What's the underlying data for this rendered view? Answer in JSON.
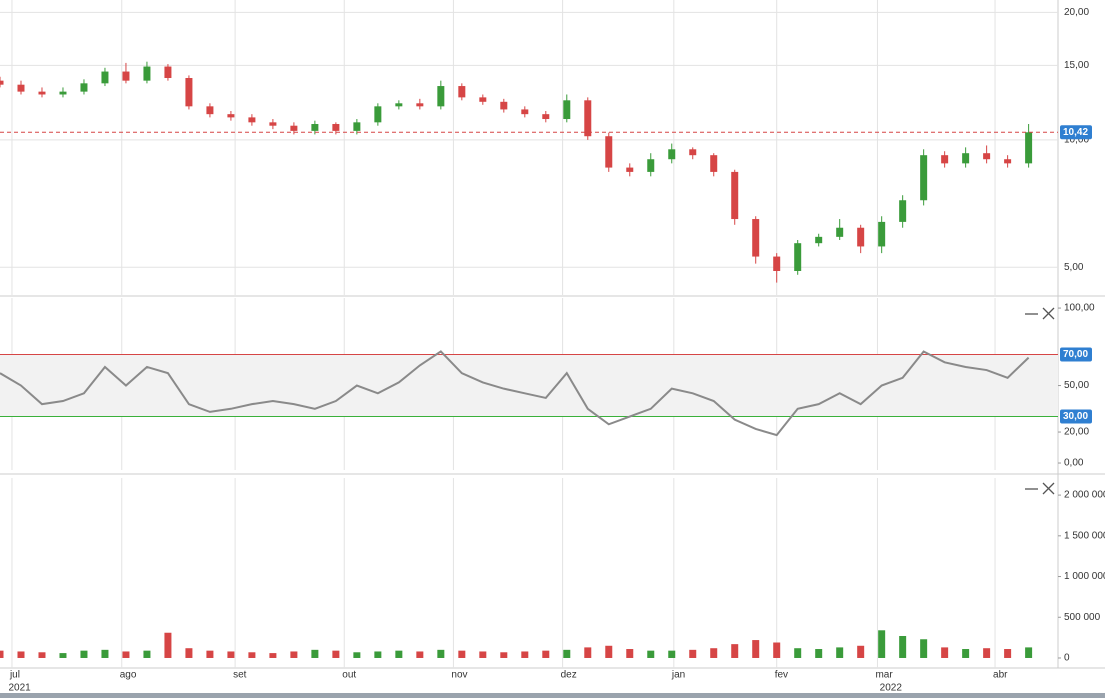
{
  "chart_data": [
    {
      "type": "candlestick",
      "log_scale": true,
      "grid": true,
      "up_color": "#3a9b3a",
      "down_color": "#d64545",
      "xlim": [
        0,
        50.4
      ],
      "xticks": [
        {
          "value": 0.57,
          "label": "jul"
        },
        {
          "value": 5.8,
          "label": "ago"
        },
        {
          "value": 11.2,
          "label": "set"
        },
        {
          "value": 16.4,
          "label": "out"
        },
        {
          "value": 21.6,
          "label": "nov"
        },
        {
          "value": 26.8,
          "label": "dez"
        },
        {
          "value": 32.1,
          "label": "jan"
        },
        {
          "value": 37,
          "label": "fev"
        },
        {
          "value": 41.8,
          "label": "mar"
        },
        {
          "value": 47.4,
          "label": "abr"
        }
      ],
      "year_ticks": [
        {
          "value": 0.5,
          "label": "2021"
        },
        {
          "value": 42,
          "label": "2022"
        }
      ],
      "ylim": [
        4.3,
        21.4
      ],
      "yticks": [
        {
          "value": 5,
          "label": "5,00"
        },
        {
          "value": 10,
          "label": "10,00"
        },
        {
          "value": 15,
          "label": "15,00"
        },
        {
          "value": 20,
          "label": "20,00"
        }
      ],
      "last_price": {
        "value": 10.42,
        "label": "10,42",
        "color": "#d64545"
      },
      "open": [
        13.8,
        13.5,
        13.0,
        12.8,
        13.0,
        13.6,
        14.5,
        13.8,
        14.9,
        14.0,
        12.0,
        11.5,
        11.3,
        11.0,
        10.8,
        10.5,
        10.9,
        10.5,
        11.0,
        12.0,
        12.2,
        12.0,
        13.4,
        12.6,
        12.3,
        11.8,
        11.5,
        11.2,
        12.4,
        10.2,
        8.6,
        8.4,
        9.0,
        9.5,
        9.2,
        8.4,
        6.5,
        5.3,
        4.9,
        5.7,
        5.9,
        6.2,
        5.6,
        6.4,
        7.2,
        9.2,
        8.8,
        9.3,
        9.0,
        8.8
      ],
      "high": [
        14.1,
        13.8,
        13.3,
        13.3,
        13.9,
        14.8,
        15.2,
        15.3,
        15.1,
        14.2,
        12.2,
        11.7,
        11.5,
        11.2,
        11.0,
        11.1,
        11.0,
        11.2,
        12.2,
        12.4,
        12.5,
        13.8,
        13.6,
        12.8,
        12.5,
        12.0,
        11.7,
        12.8,
        12.6,
        10.4,
        8.8,
        9.3,
        9.8,
        9.6,
        9.3,
        8.5,
        6.6,
        5.4,
        5.8,
        6.0,
        6.5,
        6.3,
        6.6,
        7.4,
        9.5,
        9.4,
        9.6,
        9.7,
        9.2,
        10.9
      ],
      "low": [
        13.3,
        12.8,
        12.6,
        12.6,
        12.8,
        13.4,
        13.6,
        13.6,
        13.8,
        11.8,
        11.3,
        11.1,
        10.8,
        10.6,
        10.3,
        10.3,
        10.3,
        10.3,
        10.8,
        11.8,
        11.8,
        11.8,
        12.4,
        12.1,
        11.6,
        11.3,
        11.0,
        11.0,
        10.0,
        8.4,
        8.2,
        8.2,
        8.8,
        9.0,
        8.2,
        6.3,
        5.1,
        4.6,
        4.8,
        5.6,
        5.8,
        5.4,
        5.4,
        6.2,
        7.0,
        8.6,
        8.6,
        8.8,
        8.6,
        8.6
      ],
      "close": [
        13.5,
        13.0,
        12.8,
        13.0,
        13.6,
        14.5,
        13.8,
        14.9,
        14.0,
        12.0,
        11.5,
        11.3,
        11.0,
        10.8,
        10.5,
        10.9,
        10.5,
        11.0,
        12.0,
        12.2,
        12.0,
        13.4,
        12.6,
        12.3,
        11.8,
        11.5,
        11.2,
        12.4,
        10.2,
        8.6,
        8.4,
        9.0,
        9.5,
        9.2,
        8.4,
        6.5,
        5.3,
        4.9,
        5.7,
        5.9,
        6.2,
        5.6,
        6.4,
        7.2,
        9.2,
        8.8,
        9.3,
        9.0,
        8.8,
        10.42
      ]
    },
    {
      "type": "line",
      "color": "#8a8a8a",
      "band_color": "#f2f2f2",
      "ylim": [
        -4.5,
        106.5
      ],
      "yticks": [
        {
          "value": 0,
          "label": "0,00"
        },
        {
          "value": 20,
          "label": "20,00"
        },
        {
          "value": 50,
          "label": "50,00"
        },
        {
          "value": 100,
          "label": "100,00"
        }
      ],
      "levels": [
        {
          "value": 70,
          "label": "70,00",
          "color": "#d64545"
        },
        {
          "value": 30,
          "label": "30,00",
          "color": "#3ab03a"
        }
      ],
      "values": [
        58,
        50,
        38,
        40,
        45,
        62,
        50,
        62,
        58,
        38,
        33,
        35,
        38,
        40,
        38,
        35,
        40,
        50,
        45,
        52,
        63,
        72,
        58,
        52,
        48,
        45,
        42,
        58,
        35,
        25,
        30,
        35,
        48,
        45,
        40,
        28,
        22,
        18,
        35,
        38,
        45,
        38,
        50,
        55,
        72,
        65,
        62,
        60,
        55,
        68
      ]
    },
    {
      "type": "bar",
      "ylim": [
        -123000,
        2210000
      ],
      "yticks": [
        {
          "value": 0,
          "label": "0"
        },
        {
          "value": 500000,
          "label": "500 000"
        },
        {
          "value": 1000000,
          "label": "1 000 000"
        },
        {
          "value": 1500000,
          "label": "1 500 000"
        },
        {
          "value": 2000000,
          "label": "2 000 000"
        }
      ],
      "values": [
        90000,
        80000,
        70000,
        60000,
        90000,
        100000,
        80000,
        90000,
        310000,
        120000,
        90000,
        80000,
        70000,
        60000,
        80000,
        100000,
        90000,
        70000,
        80000,
        90000,
        80000,
        100000,
        90000,
        80000,
        70000,
        80000,
        90000,
        100000,
        130000,
        150000,
        110000,
        90000,
        90000,
        100000,
        120000,
        170000,
        220000,
        190000,
        120000,
        110000,
        130000,
        150000,
        340000,
        270000,
        230000,
        130000,
        110000,
        120000,
        110000,
        130000
      ]
    }
  ]
}
